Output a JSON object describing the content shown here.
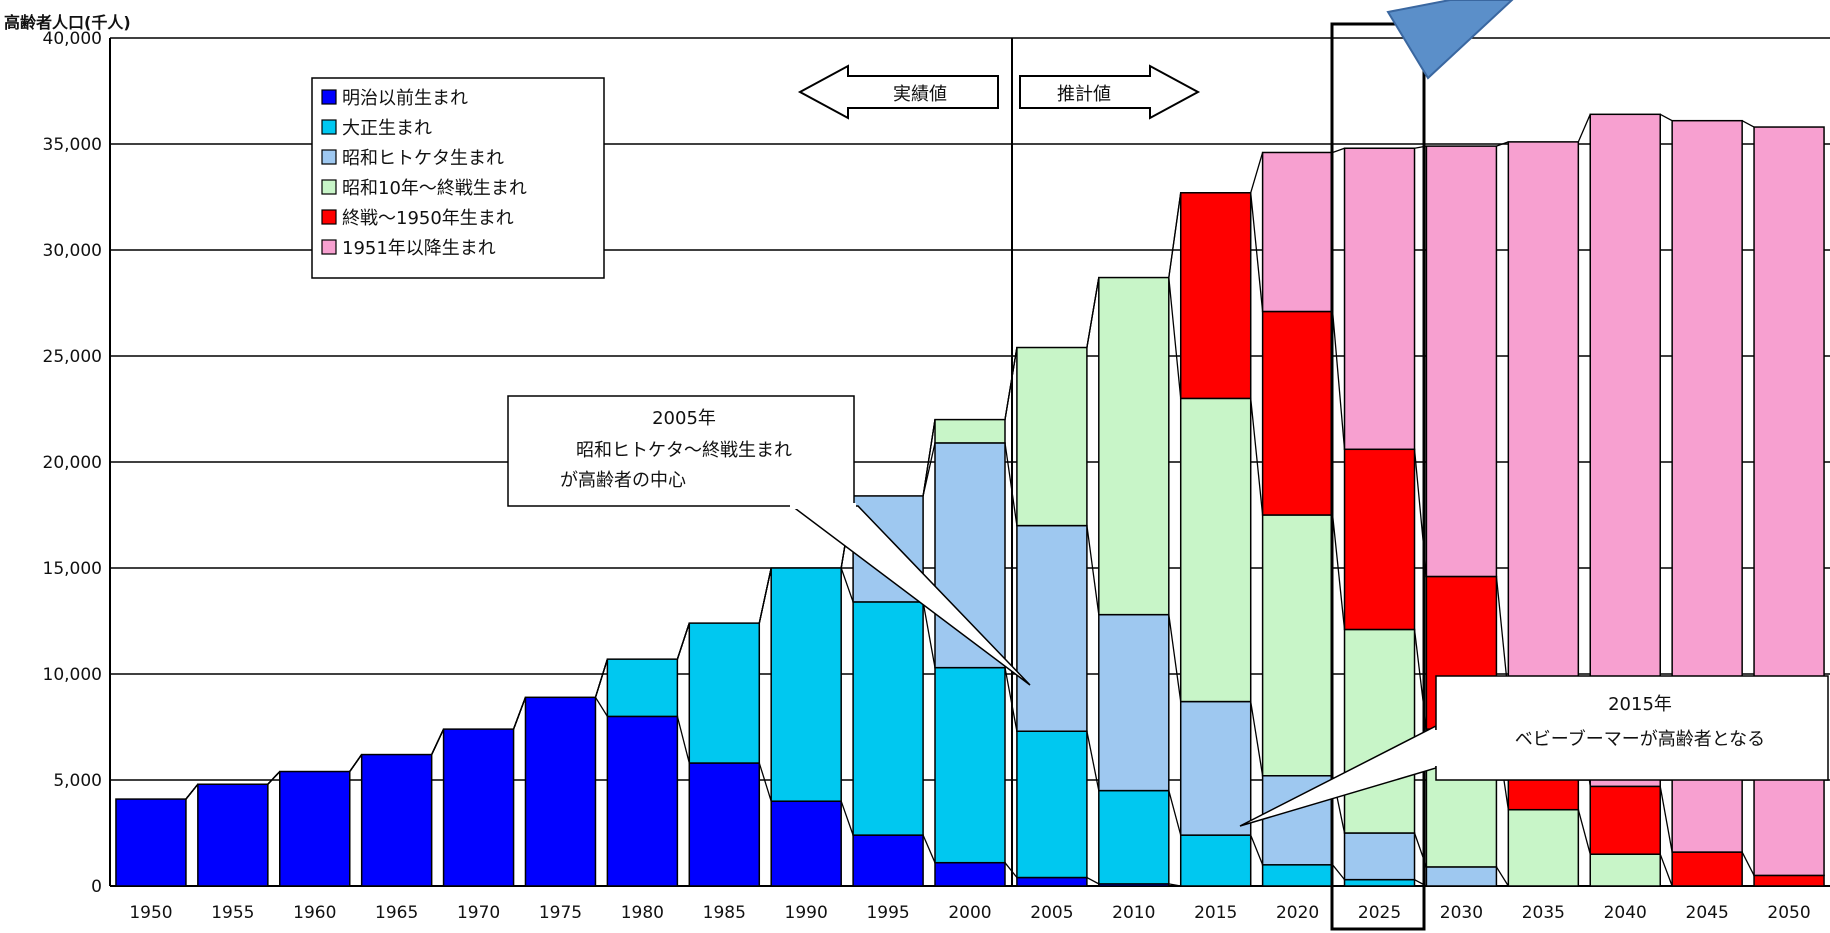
{
  "chart_data": {
    "type": "bar",
    "stacked": true,
    "title": "",
    "ylabel": "高齢者人口(千人)",
    "xlabel": "",
    "ylim": [
      0,
      40000
    ],
    "yticks": [
      0,
      5000,
      10000,
      15000,
      20000,
      25000,
      30000,
      35000,
      40000
    ],
    "ytick_labels": [
      "0",
      "5,000",
      "10,000",
      "15,000",
      "20,000",
      "25,000",
      "30,000",
      "35,000",
      "40,000"
    ],
    "grid": true,
    "legend_position": "top-left",
    "categories": [
      "1950",
      "1955",
      "1960",
      "1965",
      "1970",
      "1975",
      "1980",
      "1985",
      "1990",
      "1995",
      "2000",
      "2005",
      "2010",
      "2015",
      "2020",
      "2025",
      "2030",
      "2035",
      "2040",
      "2045",
      "2050"
    ],
    "x_labels": [
      "1950",
      "1955",
      "1960",
      "1965",
      "1970",
      "1975",
      "1980",
      "1985",
      "1990",
      "1995",
      "2000",
      "2005",
      "2010",
      "2015",
      "2020",
      "2025",
      "2030",
      "2035",
      "2040",
      "2045",
      "2050"
    ],
    "series": [
      {
        "name": "明治以前生まれ",
        "color": "#0000ff",
        "values": [
          4100,
          4800,
          5400,
          6200,
          7400,
          8900,
          8000,
          5800,
          4000,
          2400,
          1100,
          400,
          100,
          0,
          0,
          0,
          0,
          0,
          0,
          0,
          0
        ]
      },
      {
        "name": "大正生まれ",
        "color": "#00c8f0",
        "values": [
          0,
          0,
          0,
          0,
          0,
          0,
          2700,
          6600,
          11000,
          11000,
          9200,
          6900,
          4400,
          2400,
          1000,
          300,
          0,
          0,
          0,
          0,
          0
        ]
      },
      {
        "name": "昭和ヒトケタ生まれ",
        "color": "#9ec8f0",
        "values": [
          0,
          0,
          0,
          0,
          0,
          0,
          0,
          0,
          0,
          5000,
          10600,
          9700,
          8300,
          6300,
          4200,
          2200,
          900,
          0,
          0,
          0,
          0
        ]
      },
      {
        "name": "昭和10年～終戦生まれ",
        "color": "#c8f5c8",
        "values": [
          0,
          0,
          0,
          0,
          0,
          0,
          0,
          0,
          0,
          0,
          1100,
          8400,
          15900,
          14300,
          12300,
          9600,
          6500,
          3600,
          1500,
          0,
          0
        ]
      },
      {
        "name": "終戦～1950年生まれ",
        "color": "#ff0000",
        "values": [
          0,
          0,
          0,
          0,
          0,
          0,
          0,
          0,
          0,
          0,
          0,
          0,
          0,
          9700,
          9600,
          8500,
          7200,
          5400,
          3200,
          1600,
          500
        ]
      },
      {
        "name": "1951年以降生まれ",
        "color": "#f7a0d0",
        "values": [
          0,
          0,
          0,
          0,
          0,
          0,
          0,
          0,
          0,
          0,
          0,
          0,
          0,
          0,
          7500,
          14200,
          20300,
          26100,
          31700,
          34500,
          35300
        ]
      }
    ],
    "annotations": [
      {
        "id": "actual",
        "text": "実績値"
      },
      {
        "id": "estimate",
        "text": "推計値"
      },
      {
        "id": "callout2005",
        "lines": [
          "2005年",
          "昭和ヒトケタ～終戦生まれ",
          "が高齢者の中心"
        ]
      },
      {
        "id": "callout2015",
        "lines": [
          "2015年",
          "ベビーブーマーが高齢者となる"
        ]
      }
    ],
    "highlight_category": "2025"
  }
}
